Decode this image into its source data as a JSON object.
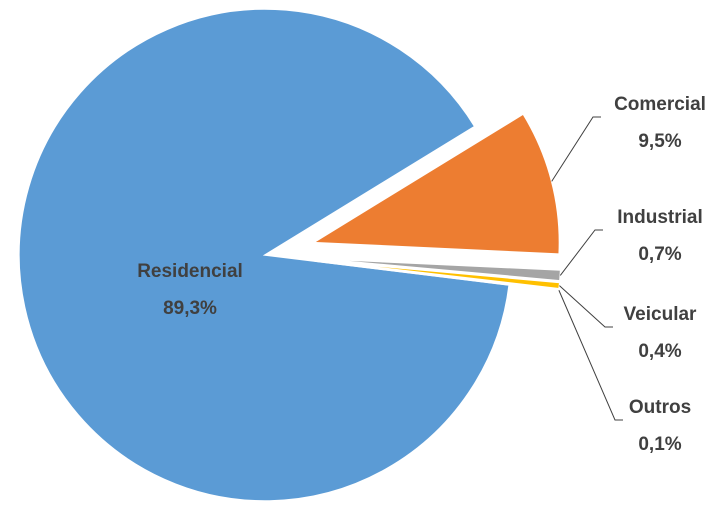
{
  "chart_data": {
    "type": "pie",
    "categories": [
      "Residencial",
      "Comercial",
      "Industrial",
      "Veicular",
      "Outros"
    ],
    "values": [
      89.3,
      9.5,
      0.7,
      0.4,
      0.1
    ],
    "value_labels": [
      "89,3%",
      "9,5%",
      "0,7%",
      "0,4%",
      "0,1%"
    ],
    "colors": [
      "#5b9bd5",
      "#ed7d31",
      "#a5a5a5",
      "#ffc000",
      "#4472c4"
    ]
  }
}
